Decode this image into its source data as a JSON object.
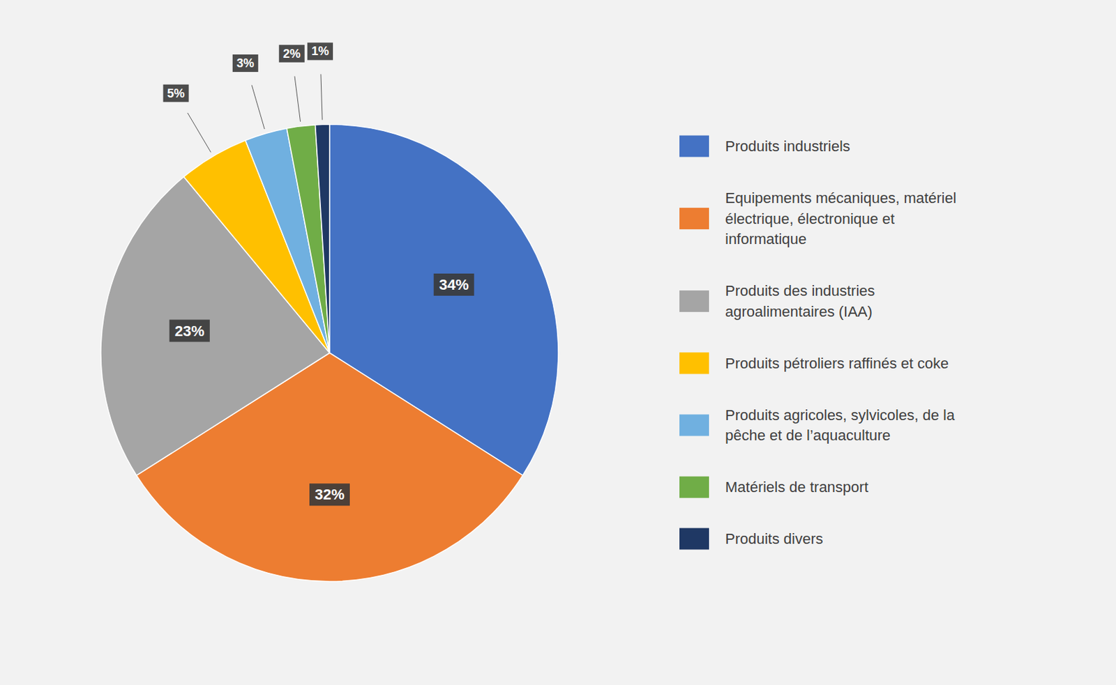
{
  "chart_data": {
    "type": "pie",
    "categories": [
      "Produits industriels",
      "Equipements mécaniques, matériel\nélectrique, électronique et\ninformatique",
      "Produits des industries\nagroalimentaires (IAA)",
      "Produits pétroliers raffinés et coke",
      "Produits agricoles, sylvicoles, de la\npêche et de l’aquaculture",
      "Matériels de transport",
      "Produits divers"
    ],
    "values": [
      34,
      32,
      23,
      5,
      3,
      2,
      1
    ],
    "value_labels": [
      "34%",
      "32%",
      "23%",
      "5%",
      "3%",
      "2%",
      "1%"
    ],
    "colors": [
      "#4472C4",
      "#ED7D31",
      "#A5A5A5",
      "#FFC000",
      "#70B0E0",
      "#70AD47",
      "#1F3864"
    ],
    "data_labels": true,
    "legend": "right"
  }
}
